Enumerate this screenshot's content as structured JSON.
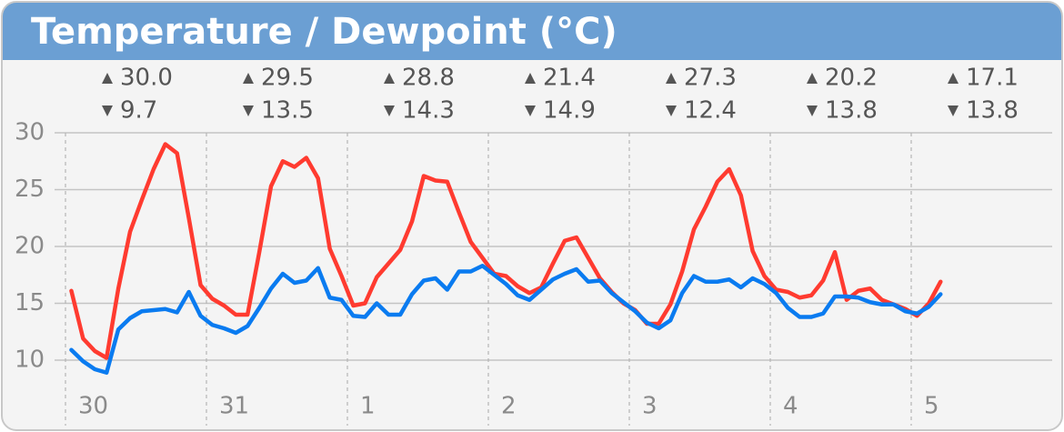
{
  "chart_data": {
    "type": "line",
    "title": "Temperature / Dewpoint (°C)",
    "x": [
      1,
      3,
      5,
      7,
      9,
      11,
      13,
      15,
      17,
      19,
      21,
      23,
      25,
      27,
      29,
      31,
      33,
      35,
      37,
      39,
      41,
      43,
      45,
      47,
      49,
      51,
      53,
      55,
      57,
      59,
      61,
      63,
      65,
      67,
      69,
      71,
      73,
      75,
      77,
      79,
      81,
      83,
      85,
      87,
      89,
      91,
      93,
      95,
      97,
      99,
      101,
      103,
      105,
      107,
      109,
      111,
      113,
      115,
      117,
      119,
      121,
      123,
      125,
      127,
      129,
      131,
      133,
      135,
      137,
      139,
      141,
      143,
      145,
      147,
      149
    ],
    "series": [
      {
        "name": "Temperature",
        "color": "#ff3b30",
        "values": [
          16.1,
          11.9,
          10.8,
          10.2,
          16.3,
          21.3,
          24.1,
          26.8,
          29,
          28.2,
          22.5,
          16.6,
          15.4,
          14.8,
          14,
          14,
          19.5,
          25.3,
          27.5,
          27,
          27.8,
          26,
          19.8,
          17.4,
          14.8,
          15,
          17.3,
          18.5,
          19.7,
          22.2,
          26.2,
          25.8,
          25.7,
          23,
          20.4,
          19,
          17.6,
          17.4,
          16.5,
          15.9,
          16.4,
          18.5,
          20.5,
          20.8,
          19,
          17.2,
          16,
          15,
          14.4,
          13.2,
          13.2,
          14.9,
          17.8,
          21.5,
          23.5,
          25.7,
          26.8,
          24.5,
          19.6,
          17.4,
          16.2,
          16,
          15.5,
          15.7,
          17,
          19.5,
          15.3,
          16.1,
          16.3,
          15.3,
          14.9,
          14.5,
          13.9,
          15,
          16.9
        ]
      },
      {
        "name": "Dewpoint",
        "color": "#0a7bf0",
        "values": [
          10.9,
          9.9,
          9.2,
          8.9,
          12.7,
          13.7,
          14.3,
          14.4,
          14.5,
          14.2,
          16,
          13.9,
          13.1,
          12.8,
          12.4,
          13,
          14.6,
          16.3,
          17.6,
          16.8,
          17,
          18.1,
          15.5,
          15.3,
          13.9,
          13.8,
          15,
          14,
          14,
          15.8,
          17,
          17.2,
          16.2,
          17.8,
          17.8,
          18.3,
          17.5,
          16.7,
          15.7,
          15.3,
          16.2,
          17.1,
          17.6,
          18,
          16.9,
          17,
          15.9,
          15.1,
          14.3,
          13.3,
          12.8,
          13.5,
          15.9,
          17.4,
          16.9,
          16.9,
          17.1,
          16.4,
          17.2,
          16.7,
          15.9,
          14.6,
          13.8,
          13.8,
          14.1,
          15.6,
          15.6,
          15.5,
          15.1,
          14.9,
          14.9,
          14.3,
          14.1,
          14.7,
          15.8
        ]
      }
    ],
    "xlim": [
      0,
      168
    ],
    "xticks": [
      {
        "value": 0,
        "label": "30"
      },
      {
        "value": 24,
        "label": "31"
      },
      {
        "value": 48,
        "label": "1"
      },
      {
        "value": 72,
        "label": "2"
      },
      {
        "value": 96,
        "label": "3"
      },
      {
        "value": 120,
        "label": "4"
      },
      {
        "value": 144,
        "label": "5"
      }
    ],
    "ylim": [
      5,
      30
    ],
    "yticks": [
      10,
      15,
      20,
      25,
      30
    ],
    "grid": true,
    "daily_max": {
      "values": [
        30,
        29.5,
        28.8,
        21.4,
        27.3,
        20.2,
        17.1
      ],
      "value_labels": [
        "30.0",
        "29.5",
        "28.8",
        "21.4",
        "27.3",
        "20.2",
        "17.1"
      ]
    },
    "daily_min": {
      "values": [
        9.7,
        13.5,
        14.3,
        14.9,
        12.4,
        13.8,
        13.8
      ],
      "value_labels": [
        "9.7",
        "13.5",
        "14.3",
        "14.9",
        "12.4",
        "13.8",
        "13.8"
      ]
    }
  }
}
